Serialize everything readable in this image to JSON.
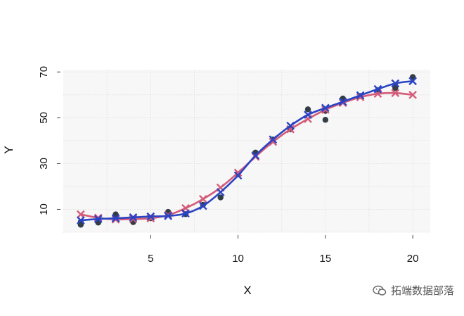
{
  "chart_data": {
    "type": "scatter",
    "xlabel": "X",
    "ylabel": "Y",
    "xlim": [
      0,
      21
    ],
    "ylim": [
      0,
      71
    ],
    "x_ticks": [
      5,
      10,
      15,
      20
    ],
    "y_ticks": [
      10,
      30,
      50,
      70
    ],
    "grid": true,
    "background": "#f7f7f7",
    "observed": {
      "color": "#333d45",
      "x": [
        1,
        1,
        2,
        2,
        3,
        3,
        4,
        4,
        5,
        6,
        6,
        7,
        8,
        9,
        10,
        11,
        12,
        13,
        14,
        15,
        15,
        16,
        17,
        18,
        19,
        19,
        20
      ],
      "y": [
        3.3,
        4.5,
        4.2,
        5.4,
        7.8,
        6.3,
        4.4,
        5.1,
        6.1,
        8.9,
        8.2,
        7.9,
        12.0,
        15.2,
        25.3,
        34.8,
        40.5,
        45.0,
        53.7,
        49.1,
        53.0,
        58.4,
        59.5,
        62.0,
        63.0,
        64.0,
        67.8
      ]
    },
    "series": [
      {
        "color": "#d45a78",
        "marker": "x",
        "x": [
          1,
          2,
          3,
          4,
          5,
          6,
          7,
          8,
          9,
          10,
          11,
          12,
          13,
          14,
          15,
          16,
          17,
          18,
          19,
          20
        ],
        "y": [
          7.8,
          6.3,
          5.6,
          5.8,
          6.1,
          7.5,
          10.5,
          14.5,
          19.5,
          26.0,
          33.0,
          39.5,
          45.0,
          49.5,
          53.5,
          56.5,
          59.0,
          60.5,
          60.8,
          60.0
        ]
      },
      {
        "color": "#2a44c4",
        "marker": "x",
        "x": [
          1,
          2,
          3,
          4,
          5,
          6,
          7,
          8,
          9,
          10,
          11,
          12,
          13,
          14,
          15,
          16,
          17,
          18,
          19,
          20
        ],
        "y": [
          5.2,
          5.8,
          6.1,
          6.5,
          6.9,
          7.1,
          8.2,
          11.5,
          17.5,
          24.8,
          33.5,
          40.5,
          46.5,
          51.3,
          54.3,
          57.0,
          59.8,
          62.5,
          65.0,
          66.0
        ]
      }
    ]
  },
  "watermark": {
    "text": "拓端数据部落",
    "icon": "wechat-icon"
  }
}
